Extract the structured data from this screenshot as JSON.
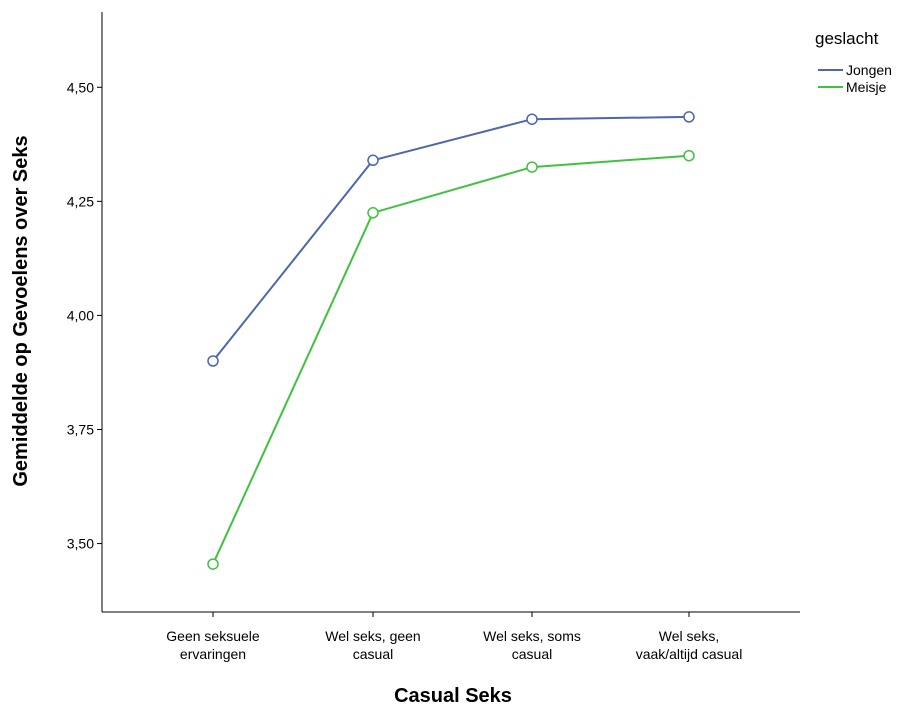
{
  "chart_data": {
    "type": "line",
    "title": "",
    "xlabel": "Casual Seks",
    "ylabel": "Gemiddelde op Gevoelens over Seks",
    "categories": [
      [
        "Geen seksuele",
        "ervaringen"
      ],
      [
        "Wel seks, geen",
        "casual"
      ],
      [
        "Wel seks, soms",
        "casual"
      ],
      [
        "Wel seks,",
        "vaak/altijd casual"
      ]
    ],
    "ylim": [
      3.35,
      4.665
    ],
    "yticks": [
      "3,50",
      "3,75",
      "4,00",
      "4,25",
      "4,50"
    ],
    "ytick_values": [
      3.5,
      3.75,
      4.0,
      4.25,
      4.5
    ],
    "grid": false,
    "legend": {
      "title": "geslacht",
      "position": "top-right"
    },
    "series": [
      {
        "name": "Jongen",
        "color": "#4e66ac",
        "values": [
          3.9,
          4.34,
          4.43,
          4.435
        ]
      },
      {
        "name": "Meisje",
        "color": "#3fc23f",
        "values": [
          3.455,
          4.225,
          4.325,
          4.35
        ]
      }
    ],
    "marker": "open-circle"
  }
}
